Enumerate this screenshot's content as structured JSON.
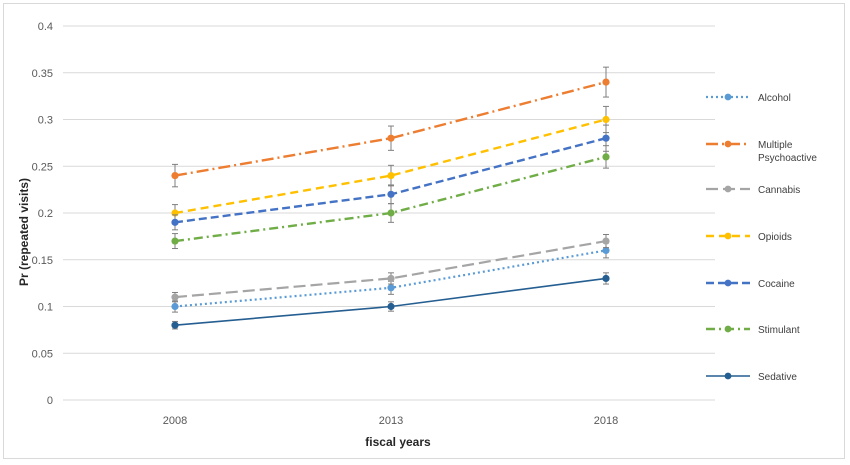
{
  "chart_data": {
    "type": "line",
    "x": [
      "2008",
      "2013",
      "2018"
    ],
    "xlabel": "fiscal years",
    "ylabel": "Pr (repeated visits)",
    "ylim": [
      0,
      0.4
    ],
    "yticks": [
      0,
      0.05,
      0.1,
      0.15,
      0.2,
      0.25,
      0.3,
      0.35,
      0.4
    ],
    "ytick_labels": [
      "0",
      "0.05",
      "0.1",
      "0.15",
      "0.2",
      "0.25",
      "0.3",
      "0.35",
      "0.4"
    ],
    "grid": true,
    "legend_position": "right",
    "series": [
      {
        "name": "Alcohol",
        "values": [
          0.1,
          0.12,
          0.16
        ],
        "err": [
          0.006,
          0.007,
          0.008
        ],
        "color": "#5b9bd5",
        "dash": "2 3",
        "width": 2.2
      },
      {
        "name": "Multiple Psychoactive",
        "legend_lines": [
          "Multiple",
          "Psychoactive"
        ],
        "values": [
          0.24,
          0.28,
          0.34
        ],
        "err": [
          0.012,
          0.013,
          0.016
        ],
        "color": "#ed7d31",
        "dash": "12 4 2 4",
        "width": 2.4
      },
      {
        "name": "Cannabis",
        "values": [
          0.11,
          0.13,
          0.17
        ],
        "err": [
          0.005,
          0.006,
          0.007
        ],
        "color": "#a5a5a5",
        "dash": "12 5",
        "width": 2.2
      },
      {
        "name": "Opioids",
        "values": [
          0.2,
          0.24,
          0.3
        ],
        "err": [
          0.009,
          0.011,
          0.014
        ],
        "color": "#ffc000",
        "dash": "8 5",
        "width": 2.4
      },
      {
        "name": "Cocaine",
        "values": [
          0.19,
          0.22,
          0.28
        ],
        "err": [
          0.008,
          0.01,
          0.014
        ],
        "color": "#4472c4",
        "dash": "8 4",
        "width": 2.4
      },
      {
        "name": "Stimulant",
        "values": [
          0.17,
          0.2,
          0.26
        ],
        "err": [
          0.008,
          0.01,
          0.012
        ],
        "color": "#70ad47",
        "dash": "9 4 2 4",
        "width": 2.4
      },
      {
        "name": "Sedative",
        "values": [
          0.08,
          0.1,
          0.13
        ],
        "err": [
          0.004,
          0.005,
          0.006
        ],
        "color": "#255e91",
        "dash": "",
        "width": 1.6
      }
    ]
  }
}
